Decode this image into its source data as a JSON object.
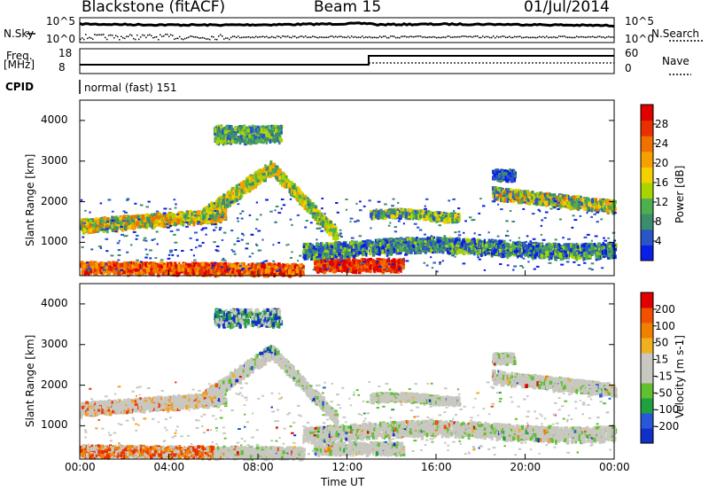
{
  "header": {
    "station": "Blackstone (fitACF)",
    "beam": "Beam 15",
    "date": "01/Jul/2014"
  },
  "params": {
    "nsky_label": "N.Sky",
    "nsearch_label": "N.Search",
    "freq_label_top": "Freq.",
    "freq_label_bottom": "[MHz]",
    "nave_label": "Nave",
    "cpid_label": "CPID",
    "cpid_value": "normal (fast) 151",
    "noise_ticks": [
      "10^5",
      "10^0"
    ],
    "freq_ticks": [
      "18",
      "8"
    ],
    "nave_ticks": [
      "60",
      "0"
    ]
  },
  "chart_data": [
    {
      "type": "heatmap",
      "name": "power-panel",
      "ylabel": "Slant Range [km]",
      "y_ticks": [
        "1000",
        "2000",
        "3000",
        "4000"
      ],
      "ylim": [
        180,
        4500
      ],
      "xlim": [
        0,
        24
      ],
      "colorbar": {
        "label": "Power [dB]",
        "ticks": [
          "4",
          "8",
          "12",
          "16",
          "20",
          "24",
          "28"
        ],
        "colors": [
          "#0a1ee6",
          "#2a55c8",
          "#3c8c6e",
          "#4caf50",
          "#a8d400",
          "#f5d000",
          "#f5a000",
          "#f07000",
          "#e83000",
          "#e00000"
        ]
      }
    },
    {
      "type": "heatmap",
      "name": "velocity-panel",
      "ylabel": "Slant Range [km]",
      "y_ticks": [
        "1000",
        "2000",
        "3000",
        "4000"
      ],
      "ylim": [
        180,
        4500
      ],
      "xlim": [
        0,
        24
      ],
      "colorbar": {
        "label": "Velocity [m s-1]",
        "ticks": [
          "200",
          "100",
          "50",
          "15",
          "-15",
          "-50",
          "-100",
          "-200"
        ],
        "colors": [
          "#1030c8",
          "#2858d8",
          "#20a040",
          "#60c030",
          "#c8c8c0",
          "#c8c8c0",
          "#f0b020",
          "#f08000",
          "#f05000",
          "#e00000"
        ]
      }
    }
  ],
  "x_ticks": [
    "00:00",
    "04:00",
    "08:00",
    "12:00",
    "16:00",
    "20:00",
    "00:00"
  ],
  "x_label": "Time UT"
}
